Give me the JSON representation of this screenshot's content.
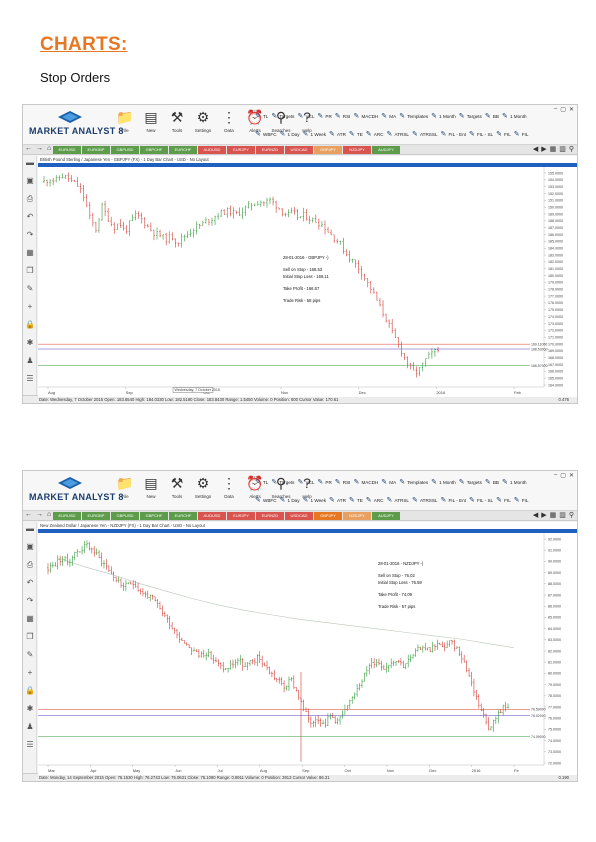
{
  "doc": {
    "heading": "CHARTS:",
    "subheading": "Stop Orders"
  },
  "app": {
    "logo_text": "MARKET ANALYST 8",
    "tools": [
      {
        "label": "File",
        "icon": "folder-icon",
        "glyph": "📁"
      },
      {
        "label": "New",
        "icon": "new-chart-icon",
        "glyph": "▤"
      },
      {
        "label": "Tools",
        "icon": "tools-icon",
        "glyph": "⚒"
      },
      {
        "label": "Settings",
        "icon": "settings-icon",
        "glyph": "⚙"
      },
      {
        "label": "Data",
        "icon": "data-icon",
        "glyph": "⋮"
      },
      {
        "label": "Alerts",
        "icon": "alerts-icon",
        "glyph": "⏰"
      },
      {
        "label": "Searches",
        "icon": "search-icon",
        "glyph": "⚲"
      },
      {
        "label": "Help",
        "icon": "help-icon",
        "glyph": "?"
      }
    ],
    "indicators_row1": [
      "TL",
      "Targets",
      "VCL",
      "PR",
      "RSI",
      "MACDH",
      "MA",
      "Templates",
      "1 Month",
      "Targets",
      "BB",
      "1 Month"
    ],
    "indicators_row2": [
      "WBFC",
      "1 Day",
      "1 Week",
      "ATR",
      "TE",
      "ARC",
      "ATRSL",
      "ATRSSL",
      "FIL - Ent",
      "FIL - SL",
      "FIL",
      "FIL"
    ],
    "window_controls": [
      "–",
      "▢",
      "✕"
    ],
    "sidebar_icons": [
      "folder-icon",
      "save-icon",
      "print-icon",
      "undo-icon",
      "redo-icon",
      "layout-icon",
      "copy-icon",
      "pen-icon",
      "crosshair-icon",
      "lock-icon",
      "gear-icon",
      "person-icon",
      "list-icon"
    ]
  },
  "chart1": {
    "tabs": [
      "EURUSD",
      "EURGBP",
      "GBPUSD",
      "GBPCHF",
      "EURCHF",
      "AUDUSD",
      "EURJPY",
      "EURNZD",
      "USDCAD",
      "GBPJPY",
      "NZDJPY",
      "AUDJPY"
    ],
    "active_tab": "GBPJPY",
    "title": "British Pound Sterling / Japanese Yen - GBPJPY (FX) - 1 Day Bar Chart - USD - No Layout",
    "status": "Date: Wednesday, 7 October 2015  Open: 183.6540  High: 184.0330  Low: 182.5190  Close: 183.8430  Range: 1.5450  Volume: 0  Position: 600  Cursor Value: 170.61",
    "status_right": "0.476",
    "date_tooltip": "Wednesday, 7 October 2015",
    "x_labels": [
      "Aug",
      "Sep",
      "Oct",
      "Nov",
      "Dec",
      "2016",
      "Feb"
    ],
    "y_labels": [
      "155.0000",
      "154.0000",
      "153.0000",
      "152.0000",
      "151.0000",
      "150.0000",
      "189.0000",
      "188.0000",
      "187.0000",
      "186.0000",
      "185.0000",
      "184.0000",
      "183.0000",
      "182.0000",
      "181.0000",
      "180.0000",
      "179.0000",
      "178.0000",
      "177.0000",
      "176.0000",
      "175.0000",
      "174.0000",
      "173.0000",
      "172.0000",
      "171.0000",
      "170.0000",
      "169.0000",
      "168.0000",
      "167.0000",
      "166.0000",
      "165.0000",
      "164.0000"
    ],
    "price_tags": [
      {
        "text": "169.11000",
        "color": "#d9372c"
      },
      {
        "text": "168.53000",
        "color": "#5a3fbf"
      },
      {
        "text": "166.57000",
        "color": "#3a9a3a"
      }
    ],
    "annotation": {
      "header": "28-01-2016 - GBPJPY -)",
      "lines": [
        "Sell on Stop    -   168.53",
        "Initial Stop Loss -  169.11",
        "Take Profit    -   166.57",
        "Trade Risk   -   58 pips"
      ]
    },
    "chart_data": {
      "type": "bar",
      "x_labels": [
        "Aug",
        "Sep",
        "Oct",
        "Nov",
        "Dec",
        "2016",
        "Feb"
      ],
      "y_range": [
        164,
        190
      ],
      "levels": [
        {
          "name": "Initial Stop Loss",
          "value": 169.11
        },
        {
          "name": "Sell on Stop",
          "value": 168.53
        },
        {
          "name": "Take Profit",
          "value": 166.57
        }
      ],
      "path": [
        188.5,
        188.8,
        188.6,
        189.2,
        189.0,
        188.4,
        187.9,
        186.5,
        184.0,
        182.8,
        185.5,
        184.2,
        183.0,
        183.6,
        182.5,
        183.8,
        184.6,
        183.9,
        183.1,
        182.4,
        182.1,
        181.6,
        182.0,
        181.2,
        181.9,
        182.4,
        183.0,
        183.3,
        183.8,
        184.1,
        184.6,
        184.9,
        185.0,
        184.6,
        184.9,
        185.4,
        185.8,
        186.1,
        186.0,
        186.3,
        185.7,
        185.0,
        184.5,
        184.8,
        184.2,
        184.5,
        184.0,
        183.8,
        183.4,
        182.6,
        181.8,
        181.2,
        180.0,
        179.2,
        178.5,
        177.5,
        176.2,
        175.0,
        173.5,
        172.2,
        170.6,
        169.2,
        167.8,
        166.5,
        165.6,
        166.2,
        167.4,
        168.0,
        168.4
      ]
    }
  },
  "chart2": {
    "tabs": [
      "EURUSD",
      "EURGBP",
      "GBPUSD",
      "GBPCHF",
      "EURCHF",
      "AUDUSD",
      "EURJPY",
      "EURNZD",
      "USDCAD",
      "GBPJPY",
      "NZDJPY",
      "AUDJPY"
    ],
    "active_tab": "NZDJPY",
    "title": "New Zealand Dollar / Japanese Yen - NZDJPY (FX) - 1 Day Bar Chart - USD - No Layout",
    "status": "Date: Monday, 14 September 2015  Open: 76.1530  High: 76.2743  Low: 75.0631  Close: 75.1090  Range: 0.8911  Volume: 0  Position: 3913  Cursor Value: 86.31",
    "status_right": "0.190",
    "x_labels": [
      "Mar",
      "Apr",
      "May",
      "Jun",
      "Jul",
      "Aug",
      "Sep",
      "Oct",
      "Nov",
      "Dec",
      "2016",
      "Fe"
    ],
    "y_labels": [
      "92.0000",
      "91.0000",
      "90.0000",
      "89.0000",
      "88.0000",
      "87.0000",
      "86.0000",
      "85.0000",
      "84.0000",
      "83.0000",
      "82.0000",
      "81.0000",
      "80.0000",
      "79.0000",
      "78.0000",
      "77.0000",
      "76.0000",
      "75.0000",
      "74.0000",
      "73.0000",
      "72.0000"
    ],
    "price_tags": [
      {
        "text": "76.59000",
        "color": "#d9372c"
      },
      {
        "text": "76.02000",
        "color": "#5a3fbf"
      },
      {
        "text": "74.09000",
        "color": "#3a9a3a"
      }
    ],
    "annotation": {
      "header": "28-01-2016 - NZDJPY -)",
      "lines": [
        "Sell on Stop    -   76.02",
        "Initial Stop Loss -   76.59",
        "Take Profit    -    74.09",
        "Trade Risk   -    57 pips"
      ]
    },
    "chart_data": {
      "type": "bar",
      "x_labels": [
        "Mar",
        "Apr",
        "May",
        "Jun",
        "Jul",
        "Aug",
        "Sep",
        "Oct",
        "Nov",
        "Dec",
        "2016",
        "Fe"
      ],
      "y_range": [
        71.5,
        92.5
      ],
      "levels": [
        {
          "name": "Initial Stop Loss",
          "value": 76.59
        },
        {
          "name": "Sell on Stop",
          "value": 76.02
        },
        {
          "name": "Take Profit",
          "value": 74.09
        }
      ],
      "path": [
        89.5,
        89.8,
        90.4,
        90.0,
        90.8,
        91.2,
        91.6,
        91.0,
        90.2,
        89.6,
        88.7,
        88.0,
        87.8,
        88.2,
        87.4,
        87.0,
        86.6,
        85.8,
        84.9,
        84.0,
        83.2,
        82.6,
        82.0,
        81.5,
        81.8,
        81.2,
        80.6,
        80.2,
        80.7,
        81.1,
        80.4,
        80.9,
        81.3,
        80.6,
        79.8,
        79.2,
        78.6,
        79.3,
        78.0,
        76.4,
        75.4,
        75.9,
        75.2,
        76.0,
        75.5,
        76.2,
        77.2,
        78.6,
        79.6,
        80.6,
        81.0,
        80.4,
        80.8,
        81.2,
        80.6,
        81.1,
        81.8,
        82.4,
        82.0,
        82.6,
        82.2,
        82.7,
        82.3,
        81.4,
        79.8,
        78.0,
        76.4,
        75.0,
        75.6,
        76.6,
        77.0
      ],
      "ma_path": [
        90.4,
        89.6,
        88.9,
        88.1,
        87.4,
        86.7,
        86.1,
        85.6,
        85.2,
        84.8,
        84.5,
        84.2,
        83.9,
        83.6,
        83.3,
        83.0,
        82.6,
        82.2
      ]
    }
  }
}
